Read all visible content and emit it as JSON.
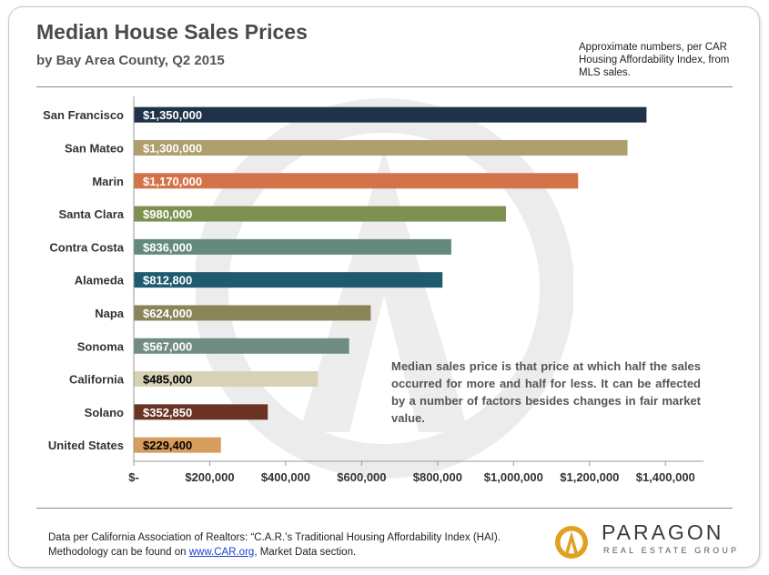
{
  "chart_data": {
    "type": "bar",
    "orientation": "horizontal",
    "title": "Median House Sales Prices",
    "subtitle": "by Bay Area County, Q2 2015",
    "categories": [
      "San Francisco",
      "San Mateo",
      "Marin",
      "Santa Clara",
      "Contra Costa",
      "Alameda",
      "Napa",
      "Sonoma",
      "California",
      "Solano",
      "United States"
    ],
    "values": [
      1350000,
      1300000,
      1170000,
      980000,
      836000,
      812800,
      624000,
      567000,
      485000,
      352850,
      229400
    ],
    "data_labels": [
      "$1,350,000",
      "$1,300,000",
      "$1,170,000",
      "$980,000",
      "$836,000",
      "$812,800",
      "$624,000",
      "$567,000",
      "$485,000",
      "$352,850",
      "$229,400"
    ],
    "colors": [
      "#1f3247",
      "#ae9f6d",
      "#d4734a",
      "#7c9150",
      "#648a80",
      "#1e5b6e",
      "#8a8459",
      "#6f8b84",
      "#d7d1b6",
      "#6a3324",
      "#d79d5c"
    ],
    "label_colors": [
      "#ffffff",
      "#ffffff",
      "#ffffff",
      "#ffffff",
      "#ffffff",
      "#ffffff",
      "#ffffff",
      "#ffffff",
      "#000000",
      "#ffffff",
      "#000000"
    ],
    "xlim": [
      0,
      1500000
    ],
    "x_ticks": [
      0,
      200000,
      400000,
      600000,
      800000,
      1000000,
      1200000,
      1400000
    ],
    "x_tick_labels": [
      "$-",
      "$200,000",
      "$400,000",
      "$600,000",
      "$800,000",
      "$1,000,000",
      "$1,200,000",
      "$1,400,000"
    ],
    "xlabel": "",
    "ylabel": "",
    "grid": false,
    "legend": "none"
  },
  "note": "Approximate numbers, per CAR Housing Affordability Index, from MLS sales.",
  "explanation": "Median sales price is that price at which half the sales occurred for more and half for less. It can be affected by a number of factors besides changes in fair market value.",
  "footer": {
    "line1": "Data per California Association of Realtors: “C.A.R.’s Traditional Housing Affordability Index (HAI).",
    "line2_prefix": "Methodology can be found on ",
    "line2_link": "www.CAR.org",
    "line2_suffix": ", Market Data section."
  },
  "logo": {
    "name": "PARAGON",
    "tagline": "REAL ESTATE GROUP",
    "icon": "paragon-logo-icon",
    "accent": "#e0a020"
  },
  "watermark_icon": "paragon-watermark-icon"
}
